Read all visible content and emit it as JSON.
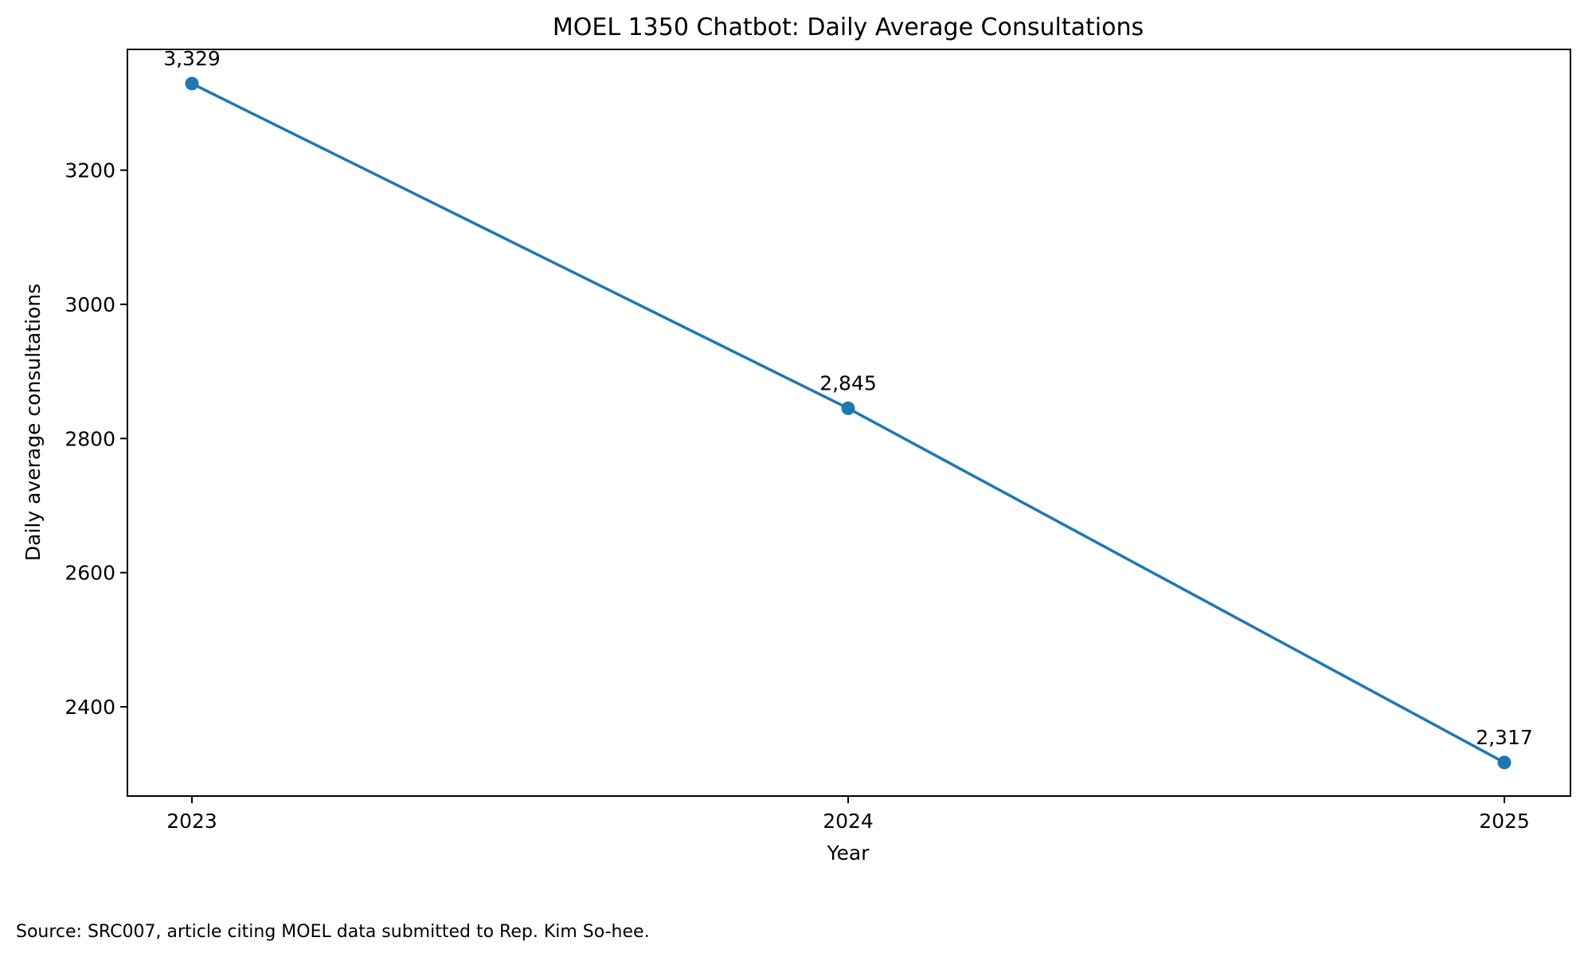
{
  "chart_data": {
    "type": "line",
    "title": "MOEL 1350 Chatbot: Daily Average Consultations",
    "xlabel": "Year",
    "ylabel": "Daily average consultations",
    "x": [
      "2023",
      "2024",
      "2025"
    ],
    "values": [
      3329,
      2845,
      2317
    ],
    "value_labels": [
      "3,329",
      "2,845",
      "2,317"
    ],
    "yticks": [
      2400,
      2600,
      2800,
      3000,
      3200
    ],
    "ytick_labels": [
      "2400",
      "2600",
      "2800",
      "3000",
      "3200"
    ],
    "ylim": [
      2267,
      3380
    ],
    "grid": false,
    "legend": false,
    "line_color": "#1f77b4",
    "marker": "circle"
  },
  "footer": {
    "source": "Source: SRC007, article citing MOEL data submitted to Rep. Kim So-hee."
  }
}
